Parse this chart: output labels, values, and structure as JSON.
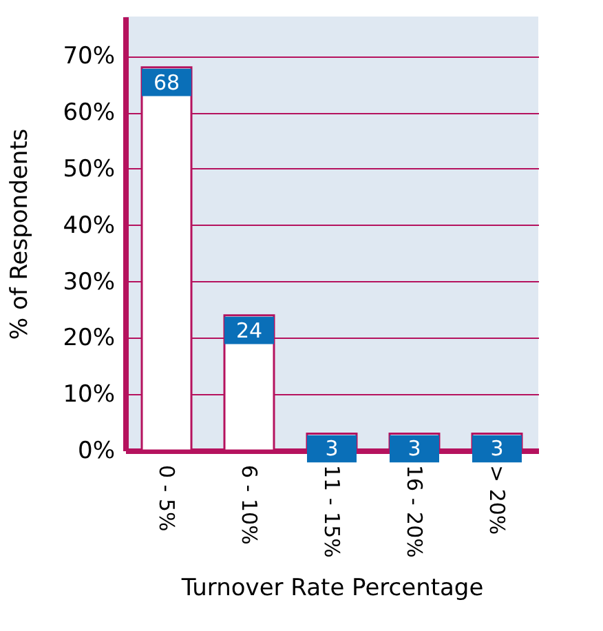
{
  "chart_data": {
    "type": "bar",
    "xlabel": "Turnover Rate Percentage",
    "ylabel": "% of Respondents",
    "categories": [
      "0 - 5%",
      "6 - 10%",
      "11 - 15%",
      "16 - 20%",
      "> 20%"
    ],
    "values": [
      68,
      24,
      3,
      3,
      3
    ],
    "color": "#ffffff",
    "ylim": [
      0,
      77
    ],
    "yticks": [
      {
        "value": 0,
        "label": "0%"
      },
      {
        "value": 10,
        "label": "10%"
      },
      {
        "value": 20,
        "label": "20%"
      },
      {
        "value": 30,
        "label": "30%"
      },
      {
        "value": 40,
        "label": "40%"
      },
      {
        "value": 50,
        "label": "50%"
      },
      {
        "value": 60,
        "label": "60%"
      },
      {
        "value": 70,
        "label": "70%"
      }
    ],
    "grid": "y",
    "data_labels": true
  }
}
